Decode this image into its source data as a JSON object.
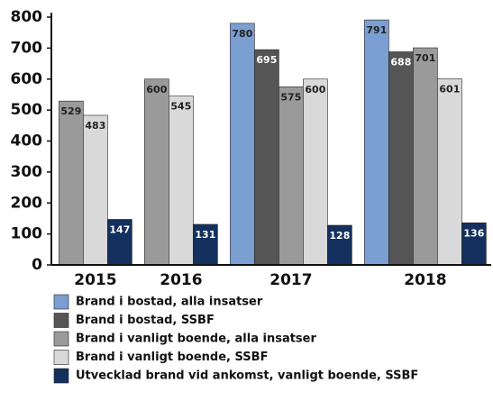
{
  "chart_data": {
    "type": "bar",
    "categories": [
      "2015",
      "2016",
      "2017",
      "2018"
    ],
    "series": [
      {
        "name": "Brand i bostad, alla insatser",
        "color": "#7b9fd2",
        "values": [
          null,
          null,
          780,
          791
        ]
      },
      {
        "name": "Brand i bostad, SSBF",
        "color": "#555555",
        "values": [
          null,
          null,
          695,
          688
        ]
      },
      {
        "name": "Brand i vanligt boende, alla insatser",
        "color": "#9a9a9a",
        "values": [
          529,
          600,
          575,
          701
        ]
      },
      {
        "name": "Brand i vanligt boende, SSBF",
        "color": "#d9d9d9",
        "values": [
          483,
          545,
          600,
          601
        ]
      },
      {
        "name": "Utvecklad brand vid ankomst, vanligt boende, SSBF",
        "color": "#13305e",
        "values": [
          147,
          131,
          128,
          136
        ]
      }
    ],
    "ylim": [
      0,
      800
    ],
    "yticks": [
      0,
      100,
      200,
      300,
      400,
      500,
      600,
      700,
      800
    ],
    "grid": false
  }
}
